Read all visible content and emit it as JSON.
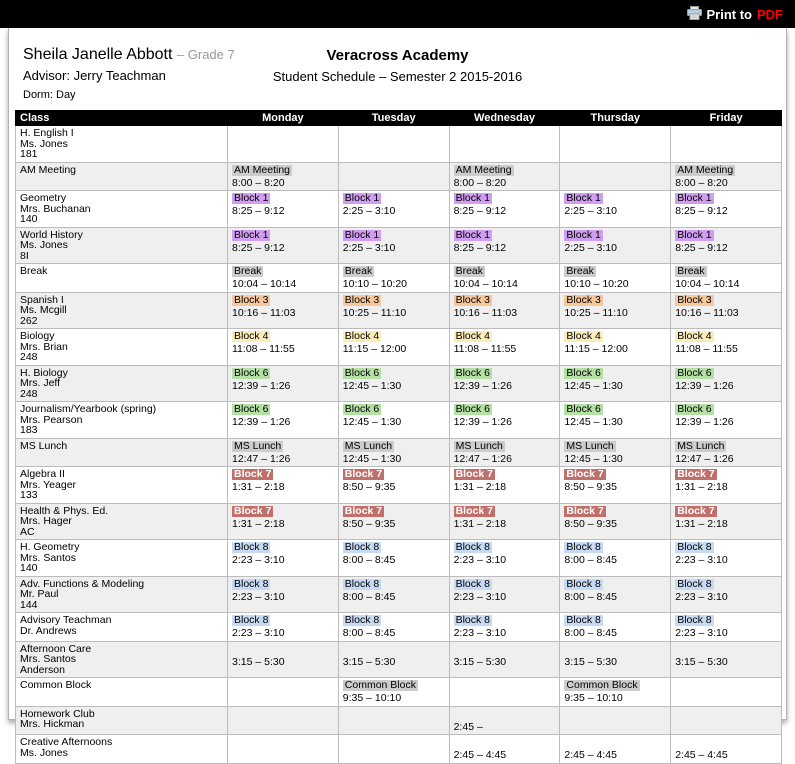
{
  "toolbar": {
    "print_prefix": "Print to",
    "print_target": "PDF"
  },
  "header": {
    "student_name": "Sheila Janelle Abbott",
    "grade_suffix": "– Grade 7",
    "advisor_line": "Advisor: Jerry Teachman",
    "dorm_line": "Dorm: Day",
    "school_name": "Veracross Academy",
    "schedule_title": "Student Schedule – Semester 2 2015-2016"
  },
  "colors": {
    "b1": "#cf9ef0",
    "b3": "#f8c69b",
    "b4": "#f9edbb",
    "b6": "#b4e0a5",
    "b7": "#c0706a",
    "b7_text": "#ffffff",
    "b8": "#c7daf4",
    "gray": "#cccccc",
    "pdf_red": "#ff0000"
  },
  "table": {
    "columns": [
      "Class",
      "Monday",
      "Tuesday",
      "Wednesday",
      "Thursday",
      "Friday"
    ],
    "rows": [
      {
        "class_lines": [
          "H. English I",
          "Ms. Jones",
          "181"
        ],
        "cells": [
          null,
          null,
          null,
          null,
          null
        ]
      },
      {
        "class_lines": [
          "AM Meeting"
        ],
        "cells": [
          {
            "chip": "AM Meeting",
            "style": "gray",
            "time": "8:00 – 8:20"
          },
          null,
          {
            "chip": "AM Meeting",
            "style": "gray",
            "time": "8:00 – 8:20"
          },
          null,
          {
            "chip": "AM Meeting",
            "style": "gray",
            "time": "8:00 – 8:20"
          }
        ]
      },
      {
        "class_lines": [
          "Geometry",
          "Mrs. Buchanan",
          "140"
        ],
        "cells": [
          {
            "chip": "Block 1",
            "style": "b1",
            "time": "8:25 – 9:12"
          },
          {
            "chip": "Block 1",
            "style": "b1",
            "time": "2:25 – 3:10"
          },
          {
            "chip": "Block 1",
            "style": "b1",
            "time": "8:25 – 9:12"
          },
          {
            "chip": "Block 1",
            "style": "b1",
            "time": "2:25 – 3:10"
          },
          {
            "chip": "Block 1",
            "style": "b1",
            "time": "8:25 – 9:12"
          }
        ]
      },
      {
        "class_lines": [
          "World History",
          "Ms. Jones",
          "8I"
        ],
        "cells": [
          {
            "chip": "Block 1",
            "style": "b1",
            "time": "8:25 – 9:12"
          },
          {
            "chip": "Block 1",
            "style": "b1",
            "time": "2:25 – 3:10"
          },
          {
            "chip": "Block 1",
            "style": "b1",
            "time": "8:25 – 9:12"
          },
          {
            "chip": "Block 1",
            "style": "b1",
            "time": "2:25 – 3:10"
          },
          {
            "chip": "Block 1",
            "style": "b1",
            "time": "8:25 – 9:12"
          }
        ]
      },
      {
        "class_lines": [
          "Break"
        ],
        "cells": [
          {
            "chip": "Break",
            "style": "gray",
            "time": "10:04 – 10:14"
          },
          {
            "chip": "Break",
            "style": "gray",
            "time": "10:10 – 10:20"
          },
          {
            "chip": "Break",
            "style": "gray",
            "time": "10:04 – 10:14"
          },
          {
            "chip": "Break",
            "style": "gray",
            "time": "10:10 – 10:20"
          },
          {
            "chip": "Break",
            "style": "gray",
            "time": "10:04 – 10:14"
          }
        ]
      },
      {
        "class_lines": [
          "Spanish I",
          "Ms. Mcgill",
          "262"
        ],
        "cells": [
          {
            "chip": "Block 3",
            "style": "b3",
            "time": "10:16 – 11:03"
          },
          {
            "chip": "Block 3",
            "style": "b3",
            "time": "10:25 – 11:10"
          },
          {
            "chip": "Block 3",
            "style": "b3",
            "time": "10:16 – 11:03"
          },
          {
            "chip": "Block 3",
            "style": "b3",
            "time": "10:25 – 11:10"
          },
          {
            "chip": "Block 3",
            "style": "b3",
            "time": "10:16 – 11:03"
          }
        ]
      },
      {
        "class_lines": [
          "Biology",
          "Mrs. Brian",
          "248"
        ],
        "cells": [
          {
            "chip": "Block 4",
            "style": "b4",
            "time": "11:08 – 11:55"
          },
          {
            "chip": "Block 4",
            "style": "b4",
            "time": "11:15 – 12:00"
          },
          {
            "chip": "Block 4",
            "style": "b4",
            "time": "11:08 – 11:55"
          },
          {
            "chip": "Block 4",
            "style": "b4",
            "time": "11:15 – 12:00"
          },
          {
            "chip": "Block 4",
            "style": "b4",
            "time": "11:08 – 11:55"
          }
        ]
      },
      {
        "class_lines": [
          "H. Biology",
          "Mrs. Jeff",
          "248"
        ],
        "cells": [
          {
            "chip": "Block 6",
            "style": "b6",
            "time": "12:39 – 1:26"
          },
          {
            "chip": "Block 6",
            "style": "b6",
            "time": "12:45 – 1:30"
          },
          {
            "chip": "Block 6",
            "style": "b6",
            "time": "12:39 – 1:26"
          },
          {
            "chip": "Block 6",
            "style": "b6",
            "time": "12:45 – 1:30"
          },
          {
            "chip": "Block 6",
            "style": "b6",
            "time": "12:39 – 1:26"
          }
        ]
      },
      {
        "class_lines": [
          "Journalism/Yearbook (spring)",
          "Mrs. Pearson",
          "183"
        ],
        "cells": [
          {
            "chip": "Block 6",
            "style": "b6",
            "time": "12:39 – 1:26"
          },
          {
            "chip": "Block 6",
            "style": "b6",
            "time": "12:45 – 1:30"
          },
          {
            "chip": "Block 6",
            "style": "b6",
            "time": "12:39 – 1:26"
          },
          {
            "chip": "Block 6",
            "style": "b6",
            "time": "12:45 – 1:30"
          },
          {
            "chip": "Block 6",
            "style": "b6",
            "time": "12:39 – 1:26"
          }
        ]
      },
      {
        "class_lines": [
          "MS Lunch"
        ],
        "cells": [
          {
            "chip": "MS Lunch",
            "style": "gray",
            "time": "12:47 – 1:26"
          },
          {
            "chip": "MS Lunch",
            "style": "gray",
            "time": "12:45 – 1:30"
          },
          {
            "chip": "MS Lunch",
            "style": "gray",
            "time": "12:47 – 1:26"
          },
          {
            "chip": "MS Lunch",
            "style": "gray",
            "time": "12:45 – 1:30"
          },
          {
            "chip": "MS Lunch",
            "style": "gray",
            "time": "12:47 – 1:26"
          }
        ]
      },
      {
        "class_lines": [
          "Algebra II",
          "Mrs. Yeager",
          "133"
        ],
        "cells": [
          {
            "chip": "Block 7",
            "style": "b7",
            "time": "1:31 – 2:18"
          },
          {
            "chip": "Block 7",
            "style": "b7",
            "time": "8:50 – 9:35"
          },
          {
            "chip": "Block 7",
            "style": "b7",
            "time": "1:31 – 2:18"
          },
          {
            "chip": "Block 7",
            "style": "b7",
            "time": "8:50 – 9:35"
          },
          {
            "chip": "Block 7",
            "style": "b7",
            "time": "1:31 – 2:18"
          }
        ]
      },
      {
        "class_lines": [
          "Health & Phys. Ed.",
          "Mrs. Hager",
          "AC"
        ],
        "cells": [
          {
            "chip": "Block 7",
            "style": "b7",
            "time": "1:31 – 2:18"
          },
          {
            "chip": "Block 7",
            "style": "b7",
            "time": "8:50 – 9:35"
          },
          {
            "chip": "Block 7",
            "style": "b7",
            "time": "1:31 – 2:18"
          },
          {
            "chip": "Block 7",
            "style": "b7",
            "time": "8:50 – 9:35"
          },
          {
            "chip": "Block 7",
            "style": "b7",
            "time": "1:31 – 2:18"
          }
        ]
      },
      {
        "class_lines": [
          "H. Geometry",
          "Mrs. Santos",
          "140"
        ],
        "cells": [
          {
            "chip": "Block 8",
            "style": "b8",
            "time": "2:23 – 3:10"
          },
          {
            "chip": "Block 8",
            "style": "b8",
            "time": "8:00 – 8:45"
          },
          {
            "chip": "Block 8",
            "style": "b8",
            "time": "2:23 – 3:10"
          },
          {
            "chip": "Block 8",
            "style": "b8",
            "time": "8:00 – 8:45"
          },
          {
            "chip": "Block 8",
            "style": "b8",
            "time": "2:23 – 3:10"
          }
        ]
      },
      {
        "class_lines": [
          "Adv. Functions & Modeling",
          "Mr. Paul",
          "144"
        ],
        "cells": [
          {
            "chip": "Block 8",
            "style": "b8",
            "time": "2:23 – 3:10"
          },
          {
            "chip": "Block 8",
            "style": "b8",
            "time": "8:00 – 8:45"
          },
          {
            "chip": "Block 8",
            "style": "b8",
            "time": "2:23 – 3:10"
          },
          {
            "chip": "Block 8",
            "style": "b8",
            "time": "8:00 – 8:45"
          },
          {
            "chip": "Block 8",
            "style": "b8",
            "time": "2:23 – 3:10"
          }
        ]
      },
      {
        "class_lines": [
          "Advisory Teachman",
          "Dr. Andrews"
        ],
        "cells": [
          {
            "chip": "Block 8",
            "style": "b8",
            "time": "2:23 – 3:10"
          },
          {
            "chip": "Block 8",
            "style": "b8",
            "time": "8:00 – 8:45"
          },
          {
            "chip": "Block 8",
            "style": "b8",
            "time": "2:23 – 3:10"
          },
          {
            "chip": "Block 8",
            "style": "b8",
            "time": "8:00 – 8:45"
          },
          {
            "chip": "Block 8",
            "style": "b8",
            "time": "2:23 – 3:10"
          }
        ]
      },
      {
        "class_lines": [
          "Afternoon Care",
          "Mrs. Santos",
          "Anderson"
        ],
        "cells": [
          {
            "time": "3:15 – 5:30"
          },
          {
            "time": "3:15 – 5:30"
          },
          {
            "time": "3:15 – 5:30"
          },
          {
            "time": "3:15 – 5:30"
          },
          {
            "time": "3:15 – 5:30"
          }
        ]
      },
      {
        "class_lines": [
          "Common Block"
        ],
        "cells": [
          null,
          {
            "chip": "Common Block",
            "style": "gray",
            "time": "9:35 – 10:10"
          },
          null,
          {
            "chip": "Common Block",
            "style": "gray",
            "time": "9:35 – 10:10"
          },
          null
        ]
      },
      {
        "class_lines": [
          "Homework Club",
          "Mrs. Hickman"
        ],
        "cells": [
          null,
          null,
          {
            "time": "2:45 –"
          },
          null,
          null
        ]
      },
      {
        "class_lines": [
          "Creative Afternoons",
          "Ms. Jones"
        ],
        "cells": [
          null,
          null,
          {
            "time": "2:45 – 4:45"
          },
          {
            "time": "2:45 – 4:45"
          },
          {
            "time": "2:45 – 4:45"
          }
        ]
      }
    ]
  }
}
